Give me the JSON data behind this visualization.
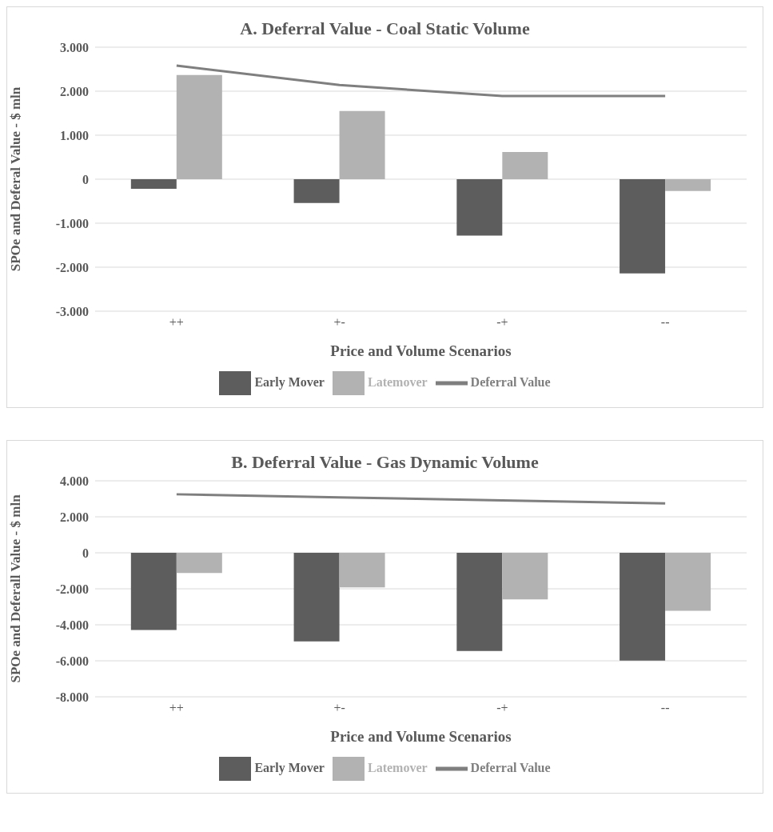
{
  "chart_data": [
    {
      "type": "bar",
      "title": "A. Deferral Value - Coal Static Volume",
      "xlabel": "Price and Volume Scenarios",
      "ylabel": "SPOe and Deferal Value - $ mln",
      "categories": [
        "++",
        "+-",
        "-+",
        "--"
      ],
      "series": [
        {
          "name": "Early Mover",
          "color": "#5d5d5d",
          "values": [
            -220,
            -540,
            -1280,
            -2140
          ]
        },
        {
          "name": "Latemover",
          "color": "#b2b2b2",
          "values": [
            2370,
            1550,
            620,
            -270
          ]
        },
        {
          "name": "Deferral Value",
          "type": "line",
          "color": "#7f7f7f",
          "values": [
            2580,
            2140,
            1890,
            1890
          ]
        }
      ],
      "ylim": [
        -3000,
        3000
      ],
      "yticks": [
        {
          "value": -3000,
          "label": "-3.000"
        },
        {
          "value": -2000,
          "label": "-2.000"
        },
        {
          "value": -1000,
          "label": "-1.000"
        },
        0,
        {
          "value": 1000,
          "label": "1.000"
        },
        {
          "value": 2000,
          "label": "2.000"
        },
        {
          "value": 3000,
          "label": "3.000"
        }
      ],
      "grid": "y",
      "legend": "bottom",
      "marker": "none"
    },
    {
      "type": "bar",
      "title": "B. Deferral Value - Gas Dynamic Volume",
      "xlabel": "Price and Volume Scenarios",
      "ylabel": "SPOe and Deferall Value - $ mln",
      "categories": [
        "++",
        "+-",
        "-+",
        "--"
      ],
      "series": [
        {
          "name": "Early Mover",
          "color": "#5d5d5d",
          "values": [
            -4290,
            -4920,
            -5450,
            -5990
          ]
        },
        {
          "name": "Latemover",
          "color": "#b2b2b2",
          "values": [
            -1120,
            -1920,
            -2590,
            -3220
          ]
        },
        {
          "name": "Deferral Value",
          "type": "line",
          "color": "#7f7f7f",
          "values": [
            3250,
            3080,
            2910,
            2740
          ]
        }
      ],
      "ylim": [
        -8000,
        4000
      ],
      "yticks": [
        {
          "value": -8000,
          "label": "-8.000"
        },
        {
          "value": -6000,
          "label": "-6.000"
        },
        {
          "value": -4000,
          "label": "-4.000"
        },
        {
          "value": -2000,
          "label": "-2.000"
        },
        0,
        {
          "value": 2000,
          "label": "2.000"
        },
        {
          "value": 4000,
          "label": "4.000"
        }
      ],
      "grid": "y",
      "legend": "bottom",
      "marker": "none"
    }
  ]
}
